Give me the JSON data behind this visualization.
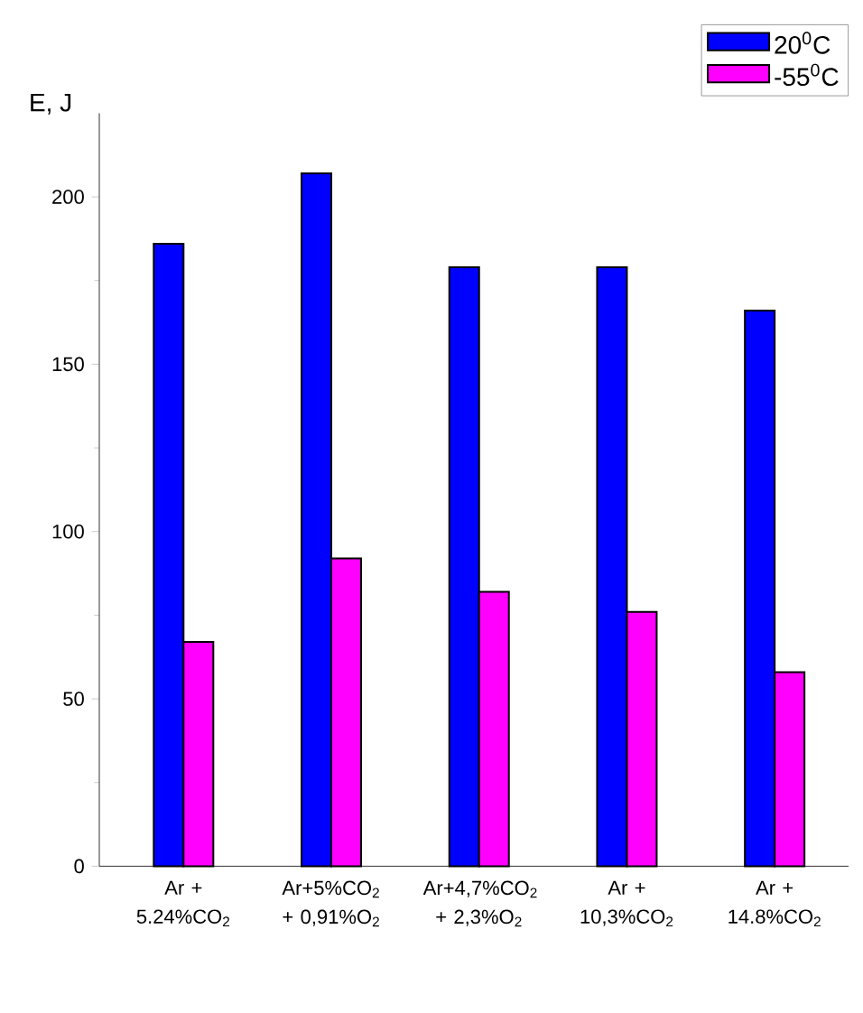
{
  "chart_data": {
    "type": "bar",
    "ylabel": "E, J",
    "categories": [
      "Ar + 5.24%CO$_{2}$",
      "Ar+5%CO$_{2}$ + 0,91%O$_{2}$",
      "Ar+4,7%CO$_{2}$ + 2,3%O$_{2}$",
      "Ar + 10,3%CO$_{2}$",
      "Ar + 14.8%CO$_{2}$"
    ],
    "series": [
      {
        "name": "20$^{0}$C",
        "color": "#0000ff",
        "values": [
          186,
          207,
          179,
          179,
          166
        ]
      },
      {
        "name": "-55$^{0}$C",
        "color": "#ff00ff",
        "values": [
          67,
          92,
          82,
          76,
          58
        ]
      }
    ],
    "ylim": [
      0,
      225
    ],
    "yticks": [
      0,
      50,
      100,
      150,
      200
    ],
    "legend": "top right"
  }
}
